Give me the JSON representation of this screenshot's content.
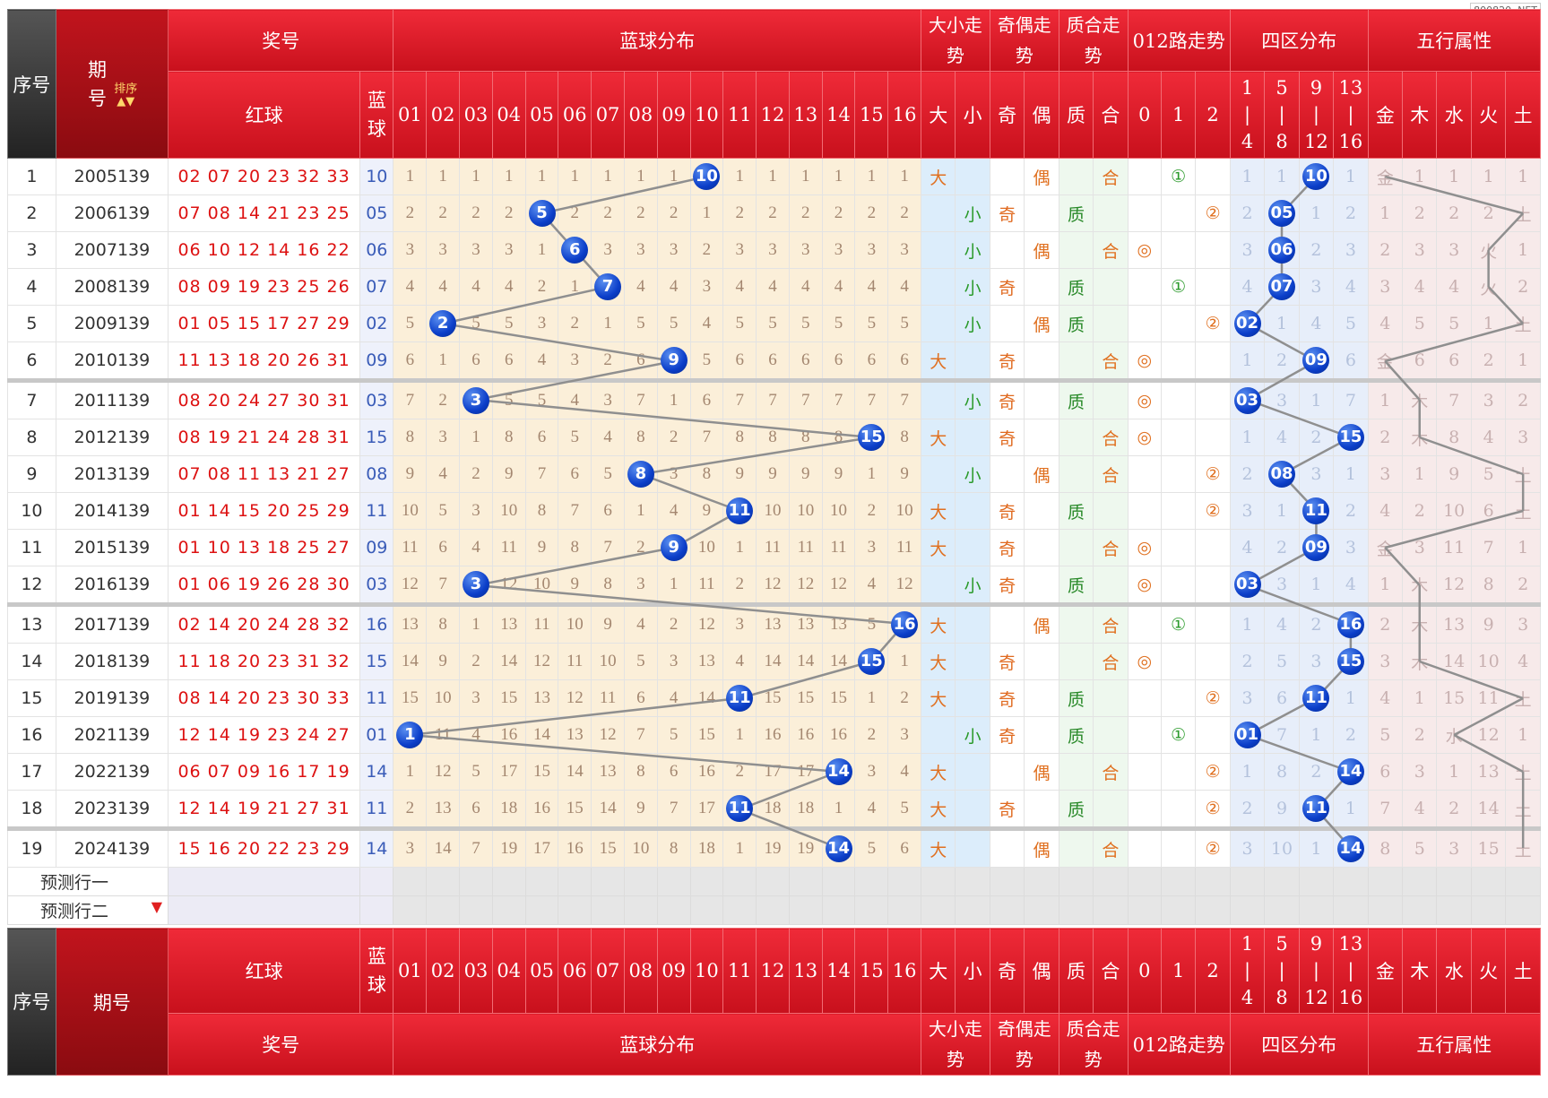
{
  "watermark": "800820. NET",
  "header": {
    "seq": "序号",
    "period": "期号",
    "sort_label": "排序",
    "prize": "奖号",
    "blue_dist": "蓝球分布",
    "size_trend": "大小走势",
    "parity_trend": "奇偶走势",
    "prime_trend": "质合走势",
    "road_trend": "012路走势",
    "zone_dist": "四区分布",
    "element_attr": "五行属性",
    "red_ball": "红球",
    "blue_ball": "蓝球",
    "numbers": [
      "01",
      "02",
      "03",
      "04",
      "05",
      "06",
      "07",
      "08",
      "09",
      "10",
      "11",
      "12",
      "13",
      "14",
      "15",
      "16"
    ],
    "size": [
      "大",
      "小"
    ],
    "parity": [
      "奇",
      "偶"
    ],
    "prime": [
      "质",
      "合"
    ],
    "road": [
      "0",
      "1",
      "2"
    ],
    "zones": [
      "1\n|\n4",
      "5\n|\n8",
      "9\n|\n12",
      "13\n|\n16"
    ],
    "elements": [
      "金",
      "木",
      "水",
      "火",
      "土"
    ]
  },
  "rows": [
    {
      "seq": "1",
      "period": "2005139",
      "red": "02 07 20 23 32 33",
      "blue": "10",
      "miss": [
        "1",
        "1",
        "1",
        "1",
        "1",
        "1",
        "1",
        "1",
        "1",
        "10",
        "1",
        "1",
        "1",
        "1",
        "1",
        "1"
      ],
      "size": "大",
      "parity": "偶",
      "prime": "合",
      "road": "1",
      "zone": [
        "1",
        "1",
        "10",
        "1"
      ],
      "wx": [
        "金",
        "1",
        "1",
        "1",
        "1"
      ]
    },
    {
      "seq": "2",
      "period": "2006139",
      "red": "07 08 14 21 23 25",
      "blue": "05",
      "miss": [
        "2",
        "2",
        "2",
        "2",
        "5",
        "2",
        "2",
        "2",
        "2",
        "1",
        "2",
        "2",
        "2",
        "2",
        "2",
        "2"
      ],
      "size": "小",
      "parity": "奇",
      "prime": "质",
      "road": "2",
      "zone": [
        "2",
        "05",
        "1",
        "2"
      ],
      "wx": [
        "1",
        "2",
        "2",
        "2",
        "土"
      ]
    },
    {
      "seq": "3",
      "period": "2007139",
      "red": "06 10 12 14 16 22",
      "blue": "06",
      "miss": [
        "3",
        "3",
        "3",
        "3",
        "1",
        "6",
        "3",
        "3",
        "3",
        "2",
        "3",
        "3",
        "3",
        "3",
        "3",
        "3"
      ],
      "size": "小",
      "parity": "偶",
      "prime": "合",
      "road": "0",
      "zone": [
        "3",
        "06",
        "2",
        "3"
      ],
      "wx": [
        "2",
        "3",
        "3",
        "火",
        "1"
      ]
    },
    {
      "seq": "4",
      "period": "2008139",
      "red": "08 09 19 23 25 26",
      "blue": "07",
      "miss": [
        "4",
        "4",
        "4",
        "4",
        "2",
        "1",
        "7",
        "4",
        "4",
        "3",
        "4",
        "4",
        "4",
        "4",
        "4",
        "4"
      ],
      "size": "小",
      "parity": "奇",
      "prime": "质",
      "road": "1",
      "zone": [
        "4",
        "07",
        "3",
        "4"
      ],
      "wx": [
        "3",
        "4",
        "4",
        "火",
        "2"
      ]
    },
    {
      "seq": "5",
      "period": "2009139",
      "red": "01 05 15 17 27 29",
      "blue": "02",
      "miss": [
        "5",
        "2",
        "5",
        "5",
        "3",
        "2",
        "1",
        "5",
        "5",
        "4",
        "5",
        "5",
        "5",
        "5",
        "5",
        "5"
      ],
      "size": "小",
      "parity": "偶",
      "prime": "质",
      "road": "2",
      "zone": [
        "02",
        "1",
        "4",
        "5"
      ],
      "wx": [
        "4",
        "5",
        "5",
        "1",
        "土"
      ]
    },
    {
      "seq": "6",
      "period": "2010139",
      "red": "11 13 18 20 26 31",
      "blue": "09",
      "miss": [
        "6",
        "1",
        "6",
        "6",
        "4",
        "3",
        "2",
        "6",
        "9",
        "5",
        "6",
        "6",
        "6",
        "6",
        "6",
        "6"
      ],
      "size": "大",
      "parity": "奇",
      "prime": "合",
      "road": "0",
      "zone": [
        "1",
        "2",
        "09",
        "6"
      ],
      "wx": [
        "金",
        "6",
        "6",
        "2",
        "1"
      ]
    },
    {
      "seq": "7",
      "period": "2011139",
      "red": "08 20 24 27 30 31",
      "blue": "03",
      "miss": [
        "7",
        "2",
        "3",
        "5",
        "5",
        "4",
        "3",
        "7",
        "1",
        "6",
        "7",
        "7",
        "7",
        "7",
        "7",
        "7"
      ],
      "size": "小",
      "parity": "奇",
      "prime": "质",
      "road": "0",
      "zone": [
        "03",
        "3",
        "1",
        "7"
      ],
      "wx": [
        "1",
        "木",
        "7",
        "3",
        "2"
      ]
    },
    {
      "seq": "8",
      "period": "2012139",
      "red": "08 19 21 24 28 31",
      "blue": "15",
      "miss": [
        "8",
        "3",
        "1",
        "8",
        "6",
        "5",
        "4",
        "8",
        "2",
        "7",
        "8",
        "8",
        "8",
        "8",
        "15",
        "8"
      ],
      "size": "大",
      "parity": "奇",
      "prime": "合",
      "road": "0",
      "zone": [
        "1",
        "4",
        "2",
        "15"
      ],
      "wx": [
        "2",
        "木",
        "8",
        "4",
        "3"
      ]
    },
    {
      "seq": "9",
      "period": "2013139",
      "red": "07 08 11 13 21 27",
      "blue": "08",
      "miss": [
        "9",
        "4",
        "2",
        "9",
        "7",
        "6",
        "5",
        "8",
        "3",
        "8",
        "9",
        "9",
        "9",
        "9",
        "1",
        "9"
      ],
      "size": "小",
      "parity": "偶",
      "prime": "合",
      "road": "2",
      "zone": [
        "2",
        "08",
        "3",
        "1"
      ],
      "wx": [
        "3",
        "1",
        "9",
        "5",
        "土"
      ]
    },
    {
      "seq": "10",
      "period": "2014139",
      "red": "01 14 15 20 25 29",
      "blue": "11",
      "miss": [
        "10",
        "5",
        "3",
        "10",
        "8",
        "7",
        "6",
        "1",
        "4",
        "9",
        "11",
        "10",
        "10",
        "10",
        "2",
        "10"
      ],
      "size": "大",
      "parity": "奇",
      "prime": "质",
      "road": "2",
      "zone": [
        "3",
        "1",
        "11",
        "2"
      ],
      "wx": [
        "4",
        "2",
        "10",
        "6",
        "土"
      ]
    },
    {
      "seq": "11",
      "period": "2015139",
      "red": "01 10 13 18 25 27",
      "blue": "09",
      "miss": [
        "11",
        "6",
        "4",
        "11",
        "9",
        "8",
        "7",
        "2",
        "9",
        "10",
        "1",
        "11",
        "11",
        "11",
        "3",
        "11"
      ],
      "size": "大",
      "parity": "奇",
      "prime": "合",
      "road": "0",
      "zone": [
        "4",
        "2",
        "09",
        "3"
      ],
      "wx": [
        "金",
        "3",
        "11",
        "7",
        "1"
      ]
    },
    {
      "seq": "12",
      "period": "2016139",
      "red": "01 06 19 26 28 30",
      "blue": "03",
      "miss": [
        "12",
        "7",
        "3",
        "12",
        "10",
        "9",
        "8",
        "3",
        "1",
        "11",
        "2",
        "12",
        "12",
        "12",
        "4",
        "12"
      ],
      "size": "小",
      "parity": "奇",
      "prime": "质",
      "road": "0",
      "zone": [
        "03",
        "3",
        "1",
        "4"
      ],
      "wx": [
        "1",
        "木",
        "12",
        "8",
        "2"
      ]
    },
    {
      "seq": "13",
      "period": "2017139",
      "red": "02 14 20 24 28 32",
      "blue": "16",
      "miss": [
        "13",
        "8",
        "1",
        "13",
        "11",
        "10",
        "9",
        "4",
        "2",
        "12",
        "3",
        "13",
        "13",
        "13",
        "5",
        "16"
      ],
      "size": "大",
      "parity": "偶",
      "prime": "合",
      "road": "1",
      "zone": [
        "1",
        "4",
        "2",
        "16"
      ],
      "wx": [
        "2",
        "木",
        "13",
        "9",
        "3"
      ]
    },
    {
      "seq": "14",
      "period": "2018139",
      "red": "11 18 20 23 31 32",
      "blue": "15",
      "miss": [
        "14",
        "9",
        "2",
        "14",
        "12",
        "11",
        "10",
        "5",
        "3",
        "13",
        "4",
        "14",
        "14",
        "14",
        "15",
        "1"
      ],
      "size": "大",
      "parity": "奇",
      "prime": "合",
      "road": "0",
      "zone": [
        "2",
        "5",
        "3",
        "15"
      ],
      "wx": [
        "3",
        "木",
        "14",
        "10",
        "4"
      ]
    },
    {
      "seq": "15",
      "period": "2019139",
      "red": "08 14 20 23 30 33",
      "blue": "11",
      "miss": [
        "15",
        "10",
        "3",
        "15",
        "13",
        "12",
        "11",
        "6",
        "4",
        "14",
        "11",
        "15",
        "15",
        "15",
        "1",
        "2"
      ],
      "size": "大",
      "parity": "奇",
      "prime": "质",
      "road": "2",
      "zone": [
        "3",
        "6",
        "11",
        "1"
      ],
      "wx": [
        "4",
        "1",
        "15",
        "11",
        "土"
      ]
    },
    {
      "seq": "16",
      "period": "2021139",
      "red": "12 14 19 23 24 27",
      "blue": "01",
      "miss": [
        "1",
        "11",
        "4",
        "16",
        "14",
        "13",
        "12",
        "7",
        "5",
        "15",
        "1",
        "16",
        "16",
        "16",
        "2",
        "3"
      ],
      "size": "小",
      "parity": "奇",
      "prime": "质",
      "road": "1",
      "zone": [
        "01",
        "7",
        "1",
        "2"
      ],
      "wx": [
        "5",
        "2",
        "水",
        "12",
        "1"
      ]
    },
    {
      "seq": "17",
      "period": "2022139",
      "red": "06 07 09 16 17 19",
      "blue": "14",
      "miss": [
        "1",
        "12",
        "5",
        "17",
        "15",
        "14",
        "13",
        "8",
        "6",
        "16",
        "2",
        "17",
        "17",
        "14",
        "3",
        "4"
      ],
      "size": "大",
      "parity": "偶",
      "prime": "合",
      "road": "2",
      "zone": [
        "1",
        "8",
        "2",
        "14"
      ],
      "wx": [
        "6",
        "3",
        "1",
        "13",
        "土"
      ]
    },
    {
      "seq": "18",
      "period": "2023139",
      "red": "12 14 19 21 27 31",
      "blue": "11",
      "miss": [
        "2",
        "13",
        "6",
        "18",
        "16",
        "15",
        "14",
        "9",
        "7",
        "17",
        "11",
        "18",
        "18",
        "1",
        "4",
        "5"
      ],
      "size": "大",
      "parity": "奇",
      "prime": "质",
      "road": "2",
      "zone": [
        "2",
        "9",
        "11",
        "1"
      ],
      "wx": [
        "7",
        "4",
        "2",
        "14",
        "土"
      ]
    },
    {
      "seq": "19",
      "period": "2024139",
      "red": "15 16 20 22 23 29",
      "blue": "14",
      "miss": [
        "3",
        "14",
        "7",
        "19",
        "17",
        "16",
        "15",
        "10",
        "8",
        "18",
        "1",
        "19",
        "19",
        "14",
        "5",
        "6"
      ],
      "size": "大",
      "parity": "偶",
      "prime": "合",
      "road": "2",
      "zone": [
        "3",
        "10",
        "1",
        "14"
      ],
      "wx": [
        "8",
        "5",
        "3",
        "15",
        "土"
      ]
    }
  ],
  "predict": [
    "预测行一",
    "预测行二"
  ],
  "footer": {
    "seq": "序号",
    "period": "期号",
    "red_ball": "红球",
    "blue_ball": "蓝球",
    "prize": "奖号",
    "blue_dist": "蓝球分布",
    "size_trend": "大小走势",
    "parity_trend": "奇偶走势",
    "prime_trend": "质合走势",
    "road_trend": "012路走势",
    "zone_dist": "四区分布",
    "element_attr": "五行属性"
  },
  "colors": {
    "header_red": "#d8141f",
    "ball_blue": "#0b3ec9",
    "miss_bg": "#fbefd9",
    "line": "#999999"
  }
}
